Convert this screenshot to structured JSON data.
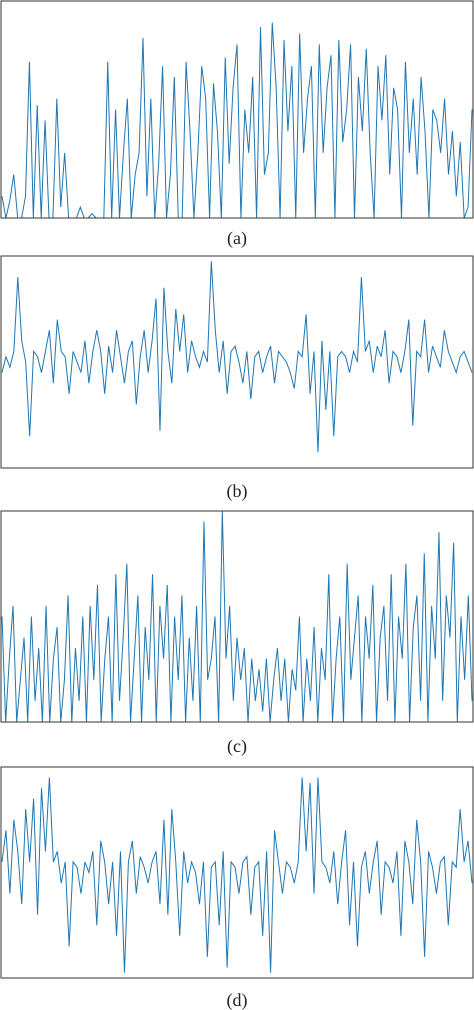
{
  "chart_data": [
    {
      "type": "line",
      "caption": "(a)",
      "color": "#1f77b4",
      "ylim": [
        0,
        1
      ],
      "values": [
        0.1,
        0,
        0.08,
        0.2,
        0,
        0,
        0.1,
        0.72,
        0,
        0.52,
        0,
        0.45,
        0,
        0,
        0.55,
        0.05,
        0.3,
        0,
        0,
        0,
        0.05,
        0,
        0,
        0.02,
        0,
        0,
        0,
        0.72,
        0,
        0.5,
        0,
        0.3,
        0.55,
        0,
        0.2,
        0.3,
        0.83,
        0.1,
        0.55,
        0,
        0.25,
        0.7,
        0,
        0.2,
        0.65,
        0,
        0,
        0.72,
        0.4,
        0,
        0.3,
        0.7,
        0.55,
        0,
        0.62,
        0.4,
        0,
        0.74,
        0.25,
        0.6,
        0.8,
        0,
        0.5,
        0.3,
        0.65,
        0,
        0.88,
        0.2,
        0.3,
        0.9,
        0.6,
        0,
        0.82,
        0.4,
        0.7,
        0,
        0.85,
        0.3,
        0.55,
        0.7,
        0,
        0.8,
        0.3,
        0.6,
        0.75,
        0,
        0.82,
        0.35,
        0.5,
        0.8,
        0,
        0.65,
        0.4,
        0.78,
        0.3,
        0,
        0.7,
        0.45,
        0.75,
        0.2,
        0.6,
        0.5,
        0,
        0.72,
        0.3,
        0.55,
        0.2,
        0.65,
        0.4,
        0,
        0.5,
        0.45,
        0.3,
        0.55,
        0.2,
        0.4,
        0.1,
        0.35,
        0,
        0.05,
        0.5
      ]
    },
    {
      "type": "line",
      "caption": "(b)",
      "color": "#1f77b4",
      "ylim": [
        -1,
        1
      ],
      "values": [
        -0.1,
        0.05,
        -0.05,
        0.1,
        0.8,
        0.2,
        0,
        -0.7,
        0.1,
        0.05,
        -0.1,
        0.1,
        0.3,
        -0.2,
        0.4,
        0.1,
        0.05,
        -0.3,
        0.1,
        0,
        -0.1,
        0.2,
        -0.2,
        0.1,
        0.3,
        0.1,
        -0.3,
        0.15,
        -0.1,
        0.3,
        0.05,
        -0.2,
        0.1,
        0.2,
        -0.4,
        0.05,
        0.3,
        -0.1,
        0.2,
        0.6,
        -0.65,
        0.7,
        0.1,
        -0.2,
        0.5,
        0.1,
        0.45,
        -0.1,
        0.2,
        0.05,
        -0.05,
        0.1,
        0,
        0.95,
        0.3,
        -0.1,
        0.2,
        -0.3,
        0.1,
        0.15,
        0,
        -0.2,
        0.1,
        -0.35,
        0.05,
        0.1,
        -0.1,
        0.05,
        0.15,
        -0.2,
        0.1,
        0.05,
        0,
        -0.1,
        -0.25,
        0.1,
        0.05,
        0.45,
        -0.3,
        0.1,
        -0.85,
        0.2,
        -0.45,
        0.1,
        -0.7,
        0.05,
        0.1,
        0.05,
        -0.1,
        0.1,
        0,
        0.8,
        0.1,
        0.2,
        -0.1,
        0.15,
        0.05,
        0.3,
        -0.2,
        0.1,
        0.05,
        -0.1,
        0.1,
        0.4,
        -0.6,
        0.1,
        0.05,
        0.4,
        -0.1,
        0.15,
        0.05,
        -0.05,
        0.3,
        0.1,
        0,
        -0.1,
        0.05,
        0.1,
        0,
        -0.1
      ]
    },
    {
      "type": "line",
      "caption": "(c)",
      "color": "#1f77b4",
      "ylim": [
        0,
        1
      ],
      "values": [
        0.5,
        0,
        0.3,
        0.55,
        0,
        0.2,
        0.4,
        0,
        0.5,
        0.1,
        0.35,
        0,
        0.55,
        0,
        0.3,
        0.45,
        0,
        0.2,
        0.6,
        0,
        0.35,
        0.1,
        0.5,
        0,
        0.55,
        0.2,
        0.65,
        0,
        0.3,
        0.5,
        0,
        0.7,
        0.1,
        0.4,
        0.75,
        0,
        0.3,
        0.6,
        0,
        0.45,
        0.2,
        0.7,
        0,
        0.55,
        0.3,
        0.65,
        0,
        0.5,
        0.2,
        0.6,
        0,
        0.4,
        0.1,
        0.55,
        0,
        0.95,
        0.2,
        0.3,
        0.5,
        0,
        1.0,
        0.3,
        0.55,
        0.1,
        0.4,
        0.2,
        0.35,
        0,
        0.3,
        0.1,
        0.25,
        0.05,
        0.3,
        0,
        0.2,
        0.35,
        0.1,
        0.3,
        0,
        0.25,
        0.15,
        0.5,
        0,
        0.3,
        0.1,
        0.45,
        0,
        0.35,
        0.2,
        0.7,
        0,
        0.3,
        0.5,
        0,
        0.75,
        0.2,
        0.4,
        0.6,
        0,
        0.5,
        0.3,
        0.65,
        0,
        0.4,
        0.55,
        0.1,
        0.7,
        0,
        0.5,
        0.3,
        0.75,
        0,
        0.45,
        0.6,
        0.1,
        0.8,
        0,
        0.55,
        0.3,
        0.9,
        0.1,
        0.6,
        0.4,
        0.85,
        0,
        0.5,
        0.2,
        0.6,
        0.1
      ]
    },
    {
      "type": "line",
      "caption": "(d)",
      "color": "#1f77b4",
      "ylim": [
        -1,
        1
      ],
      "values": [
        0.1,
        0.4,
        -0.2,
        0.5,
        0.2,
        -0.3,
        0.6,
        0.1,
        0.7,
        -0.4,
        0.8,
        0.2,
        0.9,
        0.1,
        0.2,
        -0.1,
        0.1,
        -0.7,
        0.1,
        0.05,
        -0.2,
        0.1,
        0,
        0.2,
        -0.5,
        0.3,
        0.1,
        -0.3,
        0.1,
        -0.6,
        0.2,
        -0.95,
        0.1,
        0.3,
        -0.2,
        0.15,
        0.05,
        -0.1,
        0.1,
        0.2,
        -0.3,
        0.5,
        -0.4,
        0.6,
        0.1,
        -0.6,
        0.2,
        -0.1,
        0.1,
        0,
        -0.3,
        0.1,
        -0.8,
        0.05,
        0.1,
        -0.5,
        0.2,
        -0.9,
        0.1,
        0.05,
        -0.2,
        0.1,
        0.15,
        -0.4,
        0.05,
        0.1,
        -0.6,
        0.2,
        -0.95,
        0.4,
        0.1,
        -0.2,
        0.1,
        0.05,
        -0.1,
        0.1,
        0.9,
        0.2,
        0.85,
        -0.2,
        0.9,
        0.1,
        0.05,
        -0.1,
        0.2,
        -0.3,
        0.1,
        0.4,
        -0.5,
        0.1,
        -0.7,
        0.05,
        0.2,
        -0.2,
        0.1,
        0.3,
        -0.4,
        0.1,
        0.05,
        -0.1,
        0.2,
        -0.6,
        0.3,
        0.1,
        -0.3,
        0.5,
        0.1,
        -0.8,
        0.2,
        0.05,
        -0.2,
        0.1,
        0.15,
        -0.5,
        0.1,
        0.05,
        0.6,
        0.1,
        0.3,
        -0.1
      ]
    }
  ]
}
